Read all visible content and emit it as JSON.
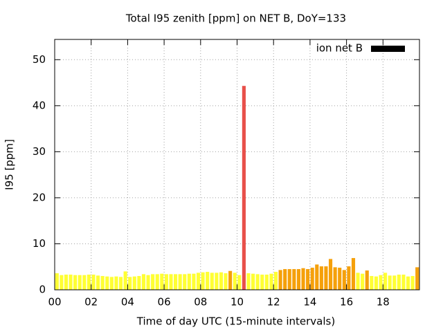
{
  "chart_data": {
    "type": "bar",
    "title": "Total I95 zenith [ppm] on NET B, DoY=133",
    "xlabel": "Time of day UTC (15-minute intervals)",
    "ylabel": "I95 [ppm]",
    "legend": "top-right",
    "grid": true,
    "xlim": [
      0,
      20
    ],
    "ylim": [
      0,
      54.4
    ],
    "xticks": [
      {
        "value": 0,
        "label": "00"
      },
      {
        "value": 2,
        "label": "02"
      },
      {
        "value": 4,
        "label": "04"
      },
      {
        "value": 6,
        "label": "06"
      },
      {
        "value": 8,
        "label": "08"
      },
      {
        "value": 10,
        "label": "10"
      },
      {
        "value": 12,
        "label": "12"
      },
      {
        "value": 14,
        "label": "14"
      },
      {
        "value": 16,
        "label": "16"
      },
      {
        "value": 18,
        "label": "18"
      }
    ],
    "yticks": [
      0,
      10,
      20,
      30,
      40,
      50
    ],
    "x": [
      0,
      0.25,
      0.5,
      0.75,
      1,
      1.25,
      1.5,
      1.75,
      2,
      2.25,
      2.5,
      2.75,
      3,
      3.25,
      3.5,
      3.75,
      4,
      4.25,
      4.5,
      4.75,
      5,
      5.25,
      5.5,
      5.75,
      6,
      6.25,
      6.5,
      6.75,
      7,
      7.25,
      7.5,
      7.75,
      8,
      8.25,
      8.5,
      8.75,
      9,
      9.25,
      9.5,
      9.75,
      10,
      10.25,
      10.5,
      10.75,
      11,
      11.25,
      11.5,
      11.75,
      12,
      12.25,
      12.5,
      12.75,
      13,
      13.25,
      13.5,
      13.75,
      14,
      14.25,
      14.5,
      14.75,
      15,
      15.25,
      15.5,
      15.75,
      16,
      16.25,
      16.5,
      16.75,
      17,
      17.25,
      17.5,
      17.75,
      18,
      18.25,
      18.5,
      18.75,
      19,
      19.25,
      19.5,
      19.75
    ],
    "series": [
      {
        "name": "ion net B",
        "color": "#000000",
        "values": [
          3.6,
          3.2,
          3.3,
          3.3,
          3.2,
          3.2,
          3.2,
          3.3,
          3.3,
          3.1,
          3.0,
          2.9,
          2.8,
          2.9,
          2.8,
          4.0,
          2.8,
          2.9,
          3.0,
          3.4,
          3.2,
          3.4,
          3.4,
          3.5,
          3.4,
          3.4,
          3.4,
          3.4,
          3.4,
          3.5,
          3.5,
          3.7,
          3.8,
          3.9,
          3.7,
          3.7,
          3.8,
          3.6,
          4.1,
          3.7,
          3.2,
          44.3,
          3.6,
          3.5,
          3.4,
          3.3,
          3.3,
          3.5,
          3.9,
          4.3,
          4.5,
          4.5,
          4.5,
          4.5,
          4.7,
          4.5,
          4.8,
          5.5,
          5.1,
          5.1,
          6.7,
          4.9,
          4.8,
          4.3,
          5.1,
          6.9,
          3.7,
          3.5,
          4.2,
          3.0,
          2.9,
          3.2,
          3.7,
          3.1,
          3.1,
          3.3,
          3.3,
          2.9,
          3.0,
          4.9
        ],
        "colors": [
          "#ffff33",
          "#ffff33",
          "#ffff33",
          "#ffff33",
          "#ffff33",
          "#ffff33",
          "#ffff33",
          "#ffff33",
          "#ffff33",
          "#ffff33",
          "#ffff33",
          "#ffff33",
          "#ffff33",
          "#ffff33",
          "#ffff33",
          "#ffff33",
          "#ffff33",
          "#ffff33",
          "#ffff33",
          "#ffff33",
          "#ffff33",
          "#ffff33",
          "#ffff33",
          "#ffff33",
          "#ffff33",
          "#ffff33",
          "#ffff33",
          "#ffff33",
          "#ffff33",
          "#ffff33",
          "#ffff33",
          "#ffff33",
          "#ffff33",
          "#ffff33",
          "#ffff33",
          "#ffff33",
          "#ffff33",
          "#ffff33",
          "#f5a00a",
          "#ffff33",
          "#ffff33",
          "#e8504a",
          "#ffff33",
          "#ffff33",
          "#ffff33",
          "#ffff33",
          "#ffff33",
          "#ffff33",
          "#ffff33",
          "#f5a00a",
          "#f5a00a",
          "#f5a00a",
          "#f5a00a",
          "#f5a00a",
          "#f5a00a",
          "#f5a00a",
          "#f5a00a",
          "#f5a00a",
          "#f5a00a",
          "#f5a00a",
          "#f5a00a",
          "#f5a00a",
          "#f5a00a",
          "#f5a00a",
          "#f5a00a",
          "#f5a00a",
          "#ffff33",
          "#ffff33",
          "#f5a00a",
          "#ffff33",
          "#ffff33",
          "#ffff33",
          "#ffff33",
          "#ffff33",
          "#ffff33",
          "#ffff33",
          "#ffff33",
          "#ffff33",
          "#ffff33",
          "#f5a00a"
        ]
      }
    ]
  }
}
